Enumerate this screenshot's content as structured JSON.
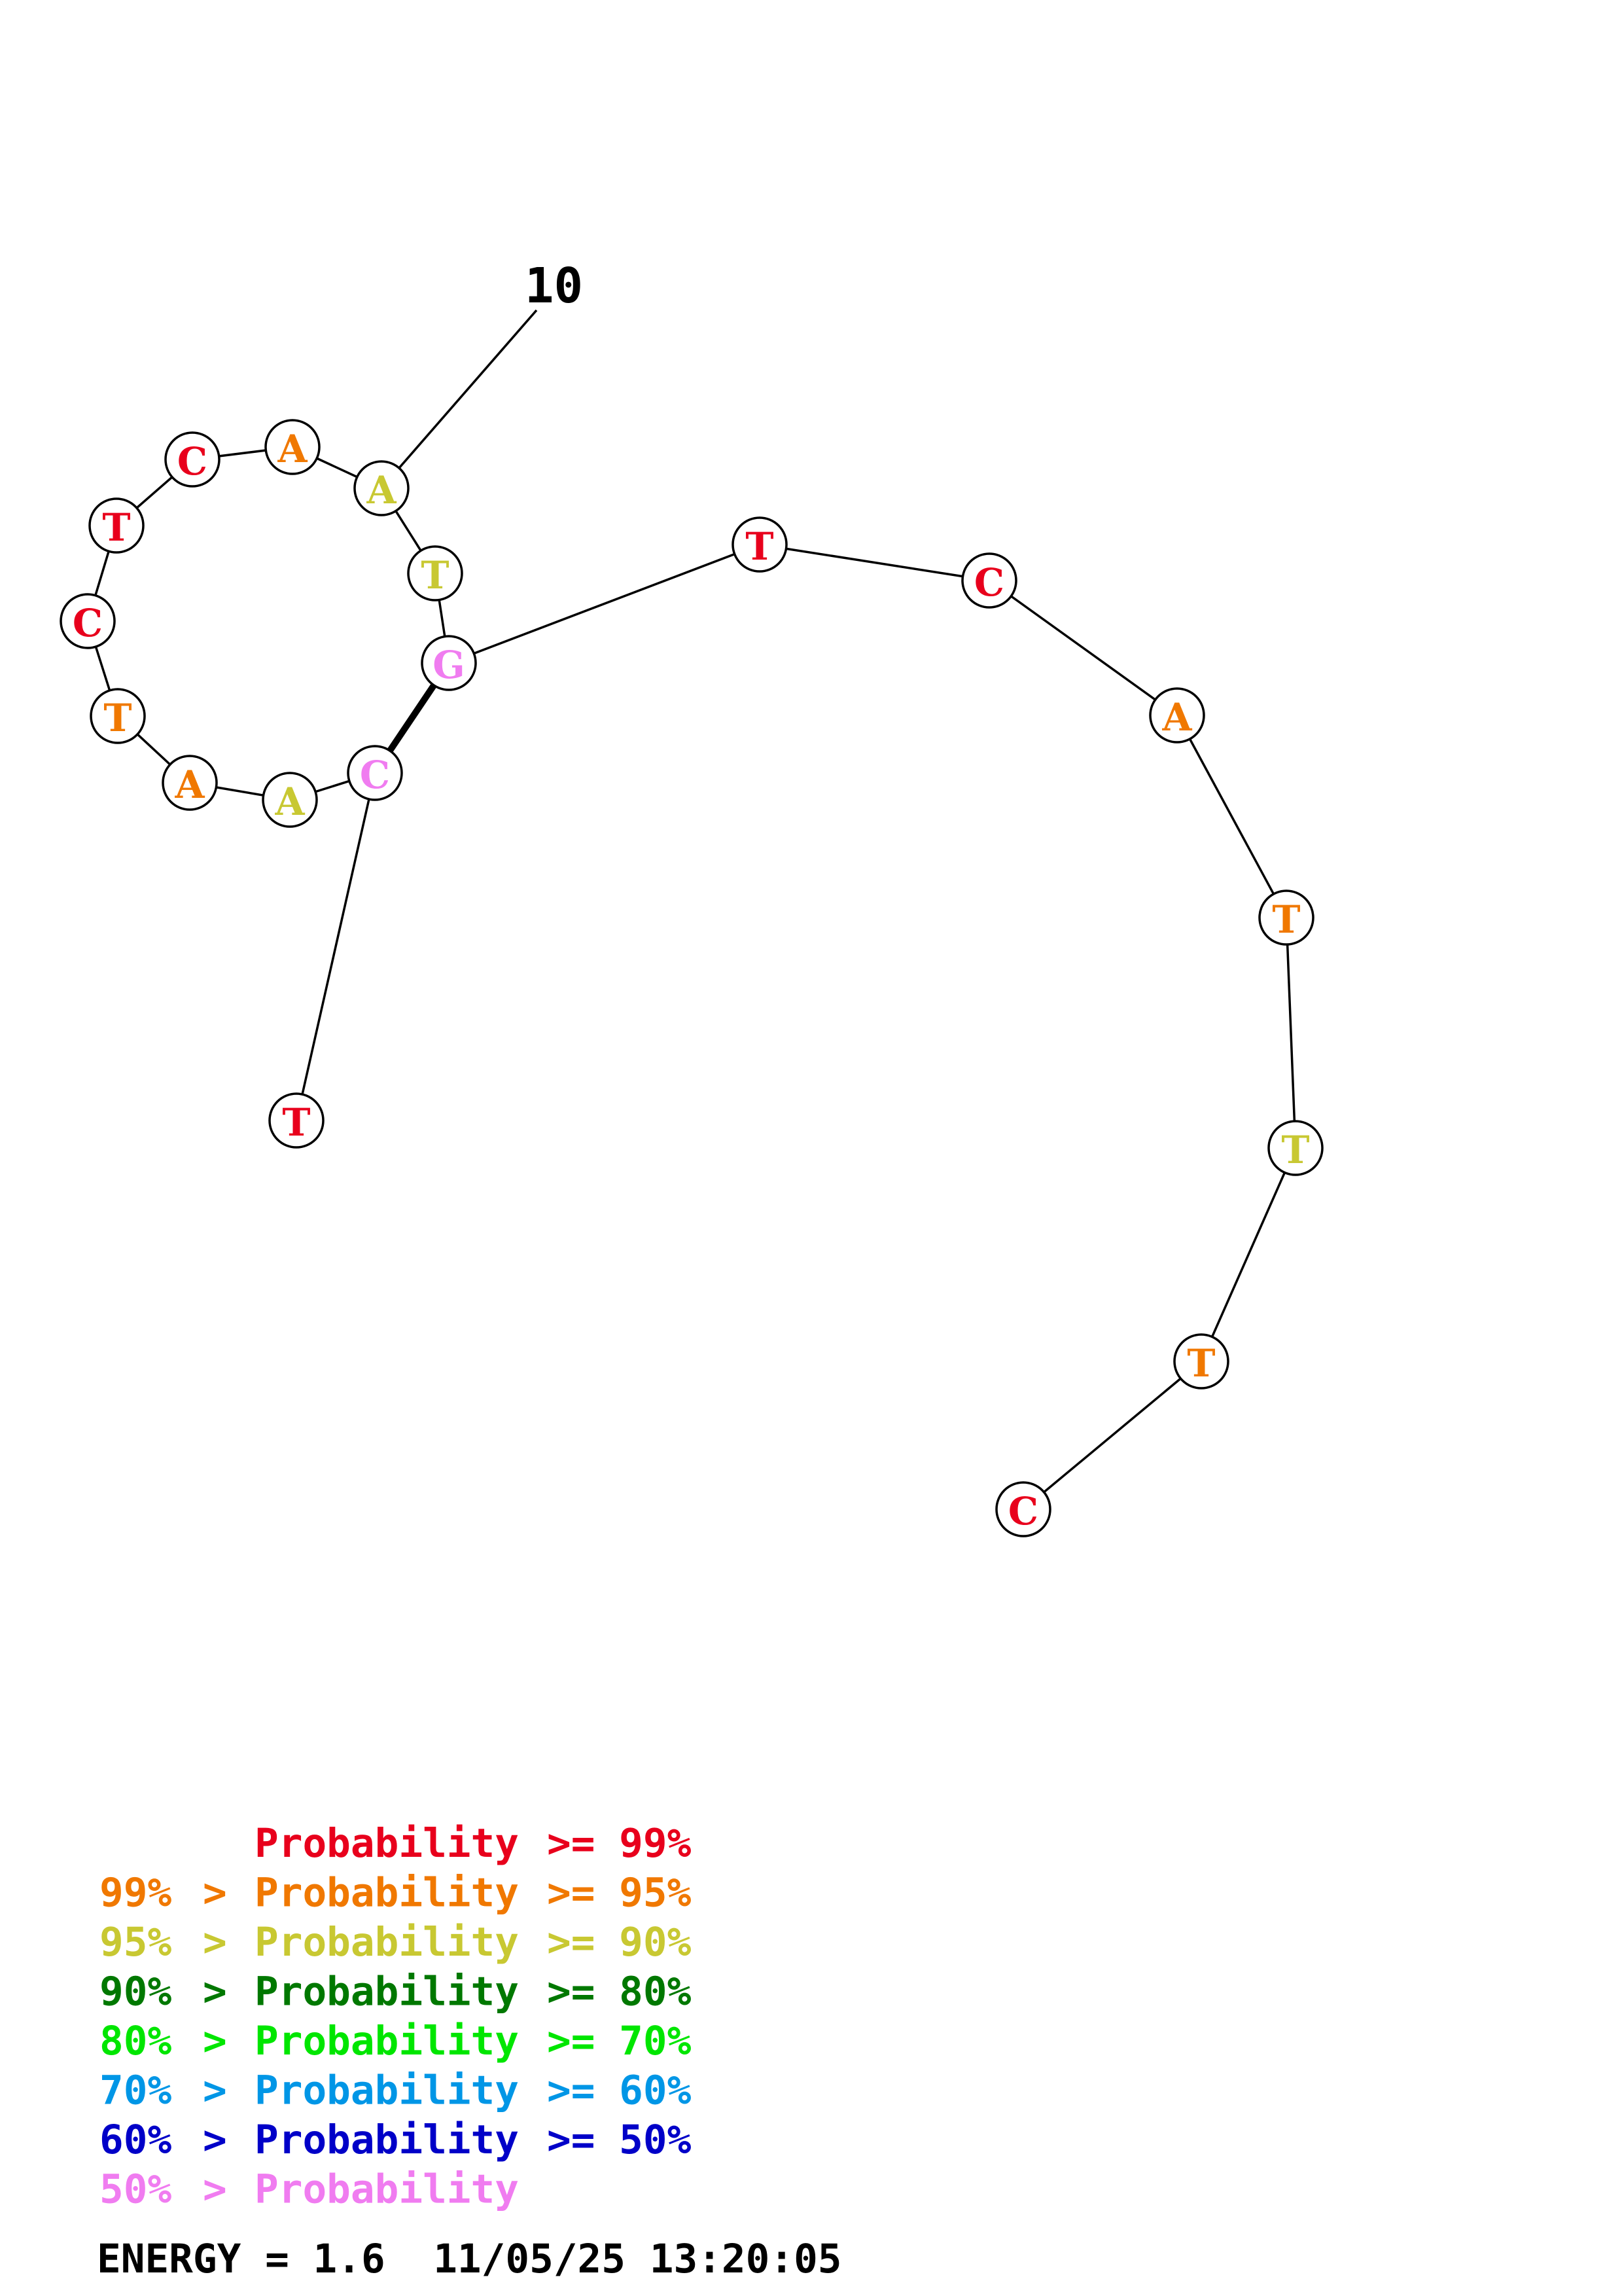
{
  "diagram": {
    "type": "rna-secondary-structure",
    "position_label": "10",
    "probability_colors": {
      "ge99": "#e8001c",
      "ge95": "#f07800",
      "ge90": "#c8c832",
      "ge80": "#007800",
      "ge70": "#00e600",
      "ge60": "#0096e6",
      "ge50": "#0000c8",
      "lt50": "#f07cf0"
    },
    "nucleotides": [
      {
        "base": "T",
        "prob_class": "ge99"
      },
      {
        "base": "C",
        "prob_class": "lt50"
      },
      {
        "base": "A",
        "prob_class": "ge90"
      },
      {
        "base": "A",
        "prob_class": "ge95"
      },
      {
        "base": "T",
        "prob_class": "ge95"
      },
      {
        "base": "C",
        "prob_class": "ge99"
      },
      {
        "base": "T",
        "prob_class": "ge99"
      },
      {
        "base": "C",
        "prob_class": "ge99"
      },
      {
        "base": "A",
        "prob_class": "ge95"
      },
      {
        "base": "A",
        "prob_class": "ge90"
      },
      {
        "base": "T",
        "prob_class": "ge90"
      },
      {
        "base": "G",
        "prob_class": "lt50"
      },
      {
        "base": "T",
        "prob_class": "ge99"
      },
      {
        "base": "C",
        "prob_class": "ge99"
      },
      {
        "base": "A",
        "prob_class": "ge95"
      },
      {
        "base": "T",
        "prob_class": "ge95"
      },
      {
        "base": "T",
        "prob_class": "ge90"
      },
      {
        "base": "T",
        "prob_class": "ge95"
      },
      {
        "base": "C",
        "prob_class": "ge99"
      }
    ],
    "pairs": [
      [
        1,
        11
      ]
    ],
    "label_at_index": 9
  },
  "legend": [
    {
      "prefix": "",
      "connector": "",
      "label": "Probability",
      "relation": ">= 99%",
      "color_key": "ge99"
    },
    {
      "prefix": "99%",
      "connector": ">",
      "label": "Probability",
      "relation": ">= 95%",
      "color_key": "ge95"
    },
    {
      "prefix": "95%",
      "connector": ">",
      "label": "Probability",
      "relation": ">= 90%",
      "color_key": "ge90"
    },
    {
      "prefix": "90%",
      "connector": ">",
      "label": "Probability",
      "relation": ">= 80%",
      "color_key": "ge80"
    },
    {
      "prefix": "80%",
      "connector": ">",
      "label": "Probability",
      "relation": ">= 70%",
      "color_key": "ge70"
    },
    {
      "prefix": "70%",
      "connector": ">",
      "label": "Probability",
      "relation": ">= 60%",
      "color_key": "ge60"
    },
    {
      "prefix": "60%",
      "connector": ">",
      "label": "Probability",
      "relation": ">= 50%",
      "color_key": "ge50"
    },
    {
      "prefix": "50%",
      "connector": ">",
      "label": "Probability",
      "relation": "",
      "color_key": "lt50"
    }
  ],
  "footer": {
    "energy_label": "ENERGY",
    "energy_value": "1.6",
    "date": "11/05/25",
    "time": "13:20:05"
  }
}
